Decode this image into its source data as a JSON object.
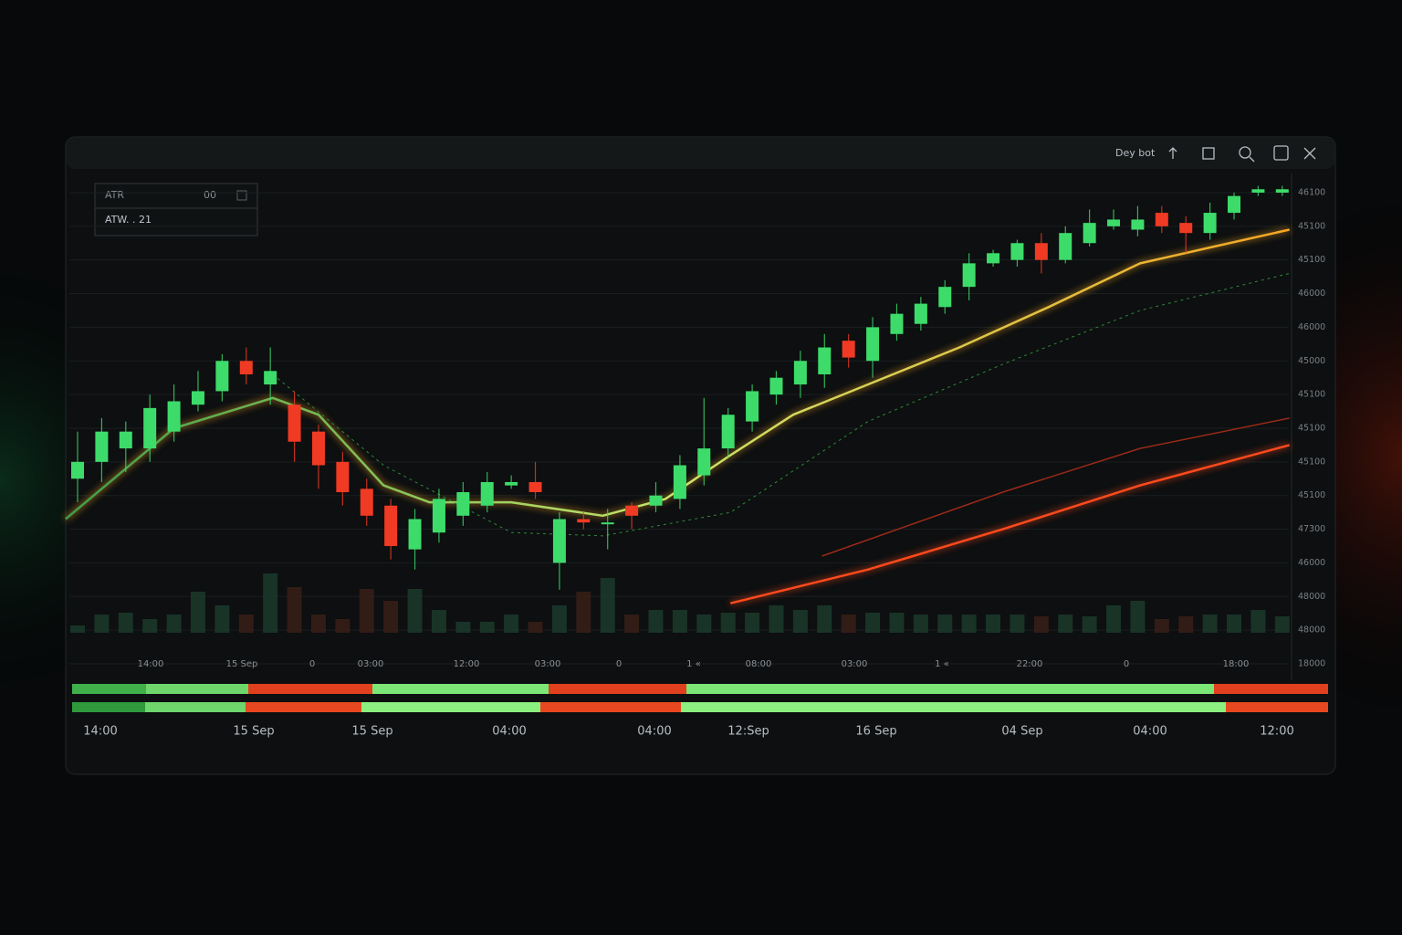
{
  "header": {
    "title": "Dey bot"
  },
  "legend_box": {
    "name": "ATR",
    "value": "00",
    "setting": "ATW. . 21"
  },
  "time_axis_top": [
    "14:00",
    "15 Sep",
    "0",
    "03:00",
    "12:00",
    "03:00",
    "0",
    "1 «",
    "08:00",
    "03:00",
    "1 «",
    "22:00",
    "0",
    "18:00"
  ],
  "time_axis_bottom": [
    "14:00",
    "15 Sep",
    "15 Sep",
    "04:00",
    "04:00",
    "12:Sep",
    "16 Sep",
    "04 Sep",
    "04:00",
    "12:00"
  ],
  "chart_data": {
    "type": "candlestick",
    "up_color": "#3ddc6a",
    "down_color": "#f03a24",
    "xlim": [
      -0.5,
      50.5
    ],
    "ylim": [
      0,
      14.5
    ],
    "yticks": [
      {
        "value": 14,
        "label": "46100"
      },
      {
        "value": 13,
        "label": "45100"
      },
      {
        "value": 12,
        "label": "45100"
      },
      {
        "value": 11,
        "label": "46000"
      },
      {
        "value": 10,
        "label": "46000"
      },
      {
        "value": 9,
        "label": "45000"
      },
      {
        "value": 8,
        "label": "45100"
      },
      {
        "value": 7,
        "label": "45100"
      },
      {
        "value": 6,
        "label": "45100"
      },
      {
        "value": 5,
        "label": "45100"
      },
      {
        "value": 4,
        "label": "47300"
      },
      {
        "value": 3,
        "label": "46000"
      },
      {
        "value": 2,
        "label": "48000"
      },
      {
        "value": 1,
        "label": "48000"
      },
      {
        "value": 0,
        "label": "18000"
      }
    ],
    "grid": true,
    "open": [
      5.5,
      6.0,
      6.4,
      6.4,
      6.9,
      7.7,
      8.1,
      9.0,
      8.3,
      7.7,
      6.9,
      6.0,
      5.2,
      4.7,
      3.4,
      3.9,
      4.4,
      4.7,
      5.3,
      5.4,
      3.0,
      4.3,
      4.2,
      4.7,
      4.7,
      4.9,
      5.6,
      6.4,
      7.2,
      8.0,
      8.3,
      8.6,
      9.6,
      9.0,
      9.8,
      10.1,
      10.6,
      11.2,
      11.9,
      12.0,
      12.5,
      12.0,
      12.5,
      13.0,
      12.9,
      13.4,
      13.1,
      12.8,
      13.4,
      14.0,
      14.0
    ],
    "high": [
      6.9,
      7.3,
      7.2,
      8.0,
      8.3,
      8.7,
      9.2,
      9.4,
      9.4,
      8.1,
      7.1,
      6.3,
      5.5,
      4.9,
      4.6,
      5.2,
      5.4,
      5.7,
      5.6,
      6.0,
      4.5,
      4.5,
      4.6,
      4.8,
      5.4,
      6.2,
      7.9,
      7.6,
      8.3,
      8.7,
      9.3,
      9.8,
      9.8,
      10.3,
      10.7,
      10.9,
      11.4,
      12.2,
      12.3,
      12.6,
      12.8,
      13.0,
      13.5,
      13.5,
      13.6,
      13.6,
      13.3,
      13.7,
      14.0,
      14.2,
      14.2
    ],
    "low": [
      4.8,
      5.4,
      5.7,
      6.0,
      6.6,
      7.5,
      7.8,
      8.3,
      7.7,
      6.0,
      5.2,
      4.7,
      4.1,
      3.1,
      2.8,
      3.6,
      4.1,
      4.5,
      5.2,
      4.9,
      2.2,
      4.0,
      3.4,
      4.0,
      4.5,
      4.6,
      5.3,
      6.1,
      6.9,
      7.7,
      7.9,
      8.2,
      8.8,
      8.5,
      9.6,
      9.9,
      10.4,
      10.8,
      11.8,
      11.8,
      11.6,
      11.9,
      12.4,
      12.9,
      12.7,
      12.8,
      12.2,
      12.6,
      13.2,
      13.9,
      13.9
    ],
    "close": [
      6.0,
      6.9,
      6.9,
      7.6,
      7.8,
      8.1,
      9.0,
      8.6,
      8.7,
      6.6,
      5.9,
      5.1,
      4.4,
      3.5,
      4.3,
      4.9,
      5.1,
      5.4,
      5.4,
      5.1,
      4.3,
      4.2,
      4.2,
      4.4,
      5.0,
      5.9,
      6.4,
      7.4,
      8.1,
      8.5,
      9.0,
      9.4,
      9.1,
      10.0,
      10.4,
      10.7,
      11.2,
      11.9,
      12.2,
      12.5,
      12.0,
      12.8,
      13.1,
      13.2,
      13.2,
      13.0,
      12.8,
      13.4,
      13.9,
      14.1,
      14.1
    ],
    "vlim": [
      0,
      70
    ],
    "volume": [
      8,
      20,
      22,
      15,
      20,
      45,
      30,
      20,
      65,
      50,
      20,
      15,
      48,
      35,
      48,
      25,
      12,
      12,
      20,
      12,
      30,
      45,
      60,
      20,
      25,
      25,
      20,
      22,
      22,
      30,
      25,
      30,
      20,
      22,
      22,
      20,
      20,
      20,
      20,
      20,
      18,
      20,
      18,
      30,
      35,
      15,
      18,
      20,
      20,
      25,
      18
    ],
    "series": [
      {
        "color": "#f5a623",
        "gradient": [
          "#3f9d46",
          "#c8e66a",
          "#f5a623"
        ],
        "width": 2.5,
        "x": [
          -0.5,
          4,
          8.1,
          10,
          12.7,
          14.6,
          18,
          21.8,
          24.4,
          27.1,
          29.7,
          32.8,
          36.6,
          40.3,
          44.1,
          47.2,
          50.3
        ],
        "values": [
          4.3,
          7.0,
          7.9,
          7.4,
          5.3,
          4.8,
          4.8,
          4.4,
          4.9,
          6.2,
          7.4,
          8.3,
          9.4,
          10.6,
          11.9,
          12.4,
          12.9
        ]
      },
      {
        "color": "#2f8a3a",
        "dashed": true,
        "width": 1,
        "x": [
          8.1,
          12.7,
          18,
          21.8,
          27.1,
          32.8,
          38.4,
          44.1,
          50.3
        ],
        "values": [
          8.6,
          5.9,
          3.9,
          3.8,
          4.5,
          7.2,
          8.9,
          10.5,
          11.6
        ]
      },
      {
        "color": "#ff4a1c",
        "width": 2.5,
        "x": [
          27.1,
          32.8,
          38.4,
          44.1,
          50.3
        ],
        "values": [
          1.8,
          2.8,
          4.0,
          5.3,
          6.5
        ]
      },
      {
        "color": "#9a2a18",
        "width": 1.5,
        "x": [
          30.9,
          38.4,
          44.1,
          50.3
        ],
        "values": [
          3.2,
          5.1,
          6.4,
          7.3
        ]
      }
    ]
  }
}
